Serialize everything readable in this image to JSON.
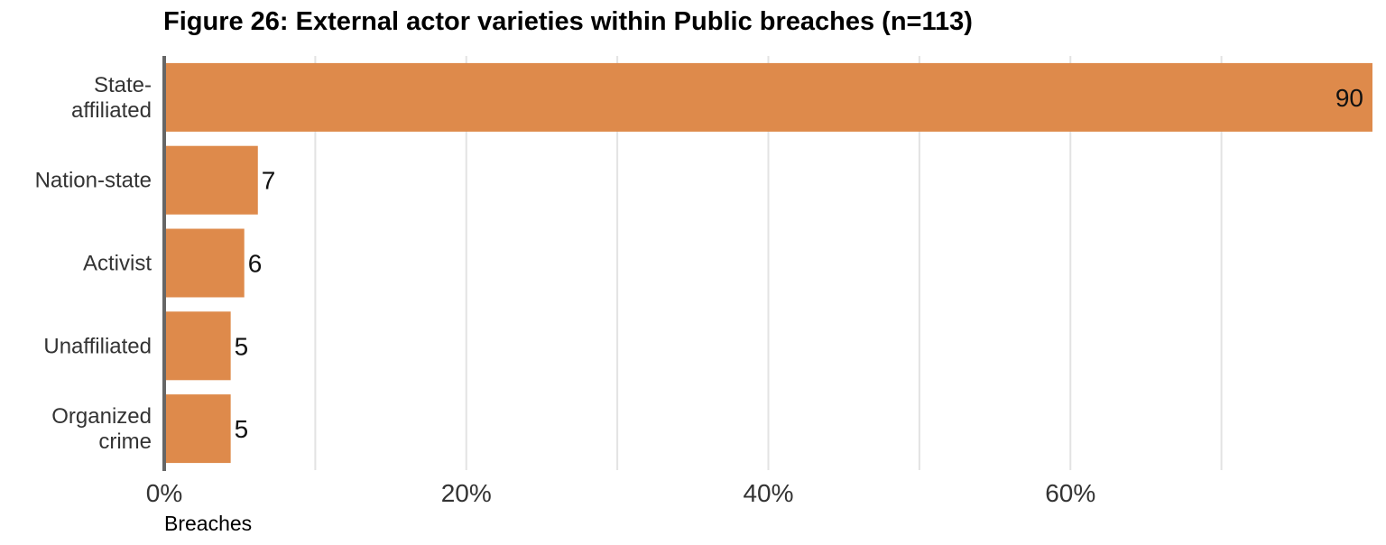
{
  "chart_data": {
    "type": "bar",
    "orientation": "horizontal",
    "title": "Figure 26: External actor varieties within Public breaches (n=113)",
    "xlabel": "Breaches",
    "ylabel": "",
    "categories": [
      [
        "State-",
        "affiliated"
      ],
      [
        "Nation-state"
      ],
      [
        "Activist"
      ],
      [
        "Unaffiliated"
      ],
      [
        "Organized",
        "crime"
      ]
    ],
    "values": [
      80,
      6.2,
      5.3,
      4.4,
      4.4
    ],
    "value_labels": [
      "90",
      "7",
      "6",
      "5",
      "5"
    ],
    "xlim": [
      0,
      80
    ],
    "xticks": [
      0,
      20,
      40,
      60
    ],
    "xtick_labels": [
      "0%",
      "20%",
      "40%",
      "60%"
    ],
    "grid": true,
    "colors": {
      "bar": "#DE8A4B",
      "grid": "#E3E3E3",
      "axis": "#666666"
    }
  }
}
